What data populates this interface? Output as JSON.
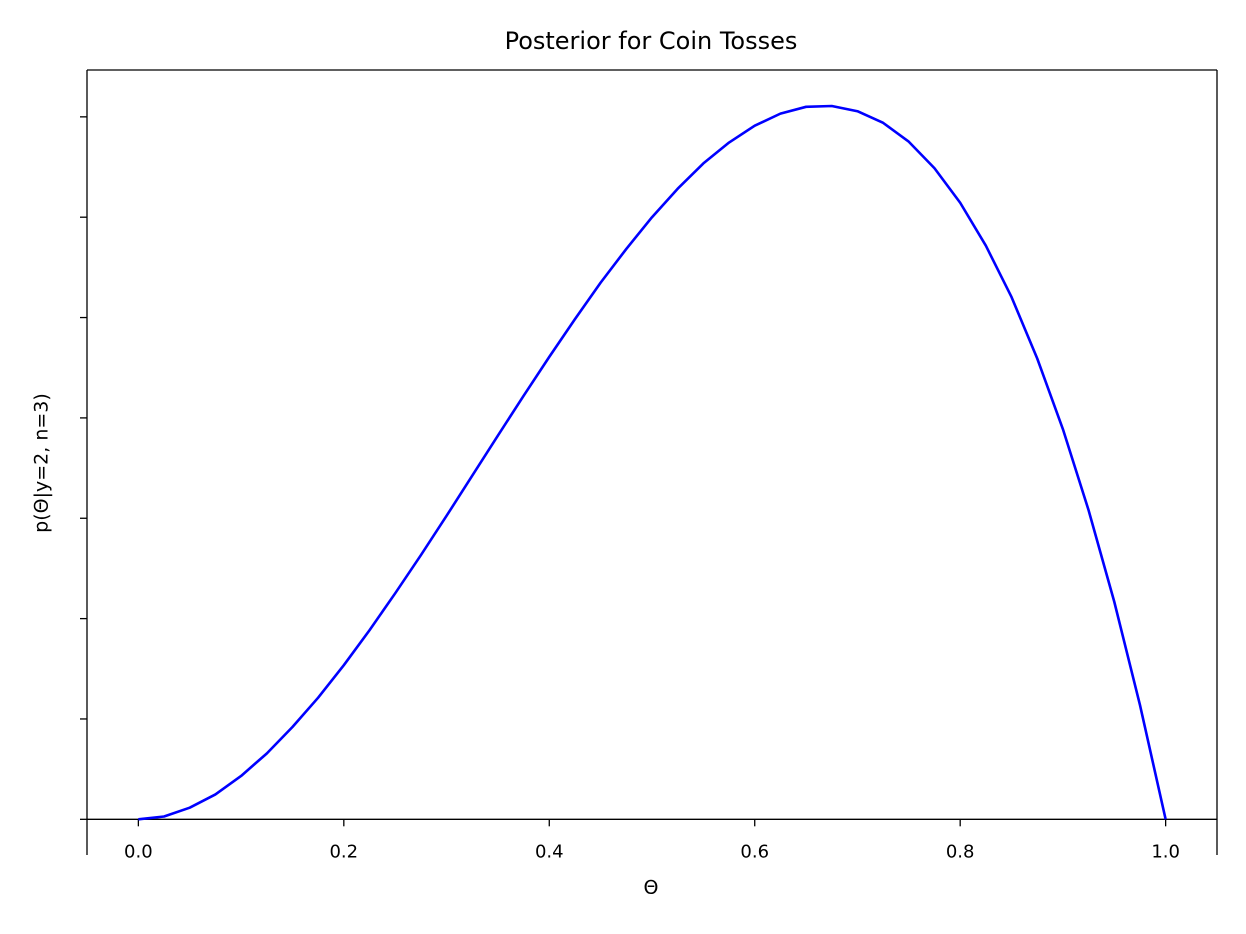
{
  "chart_data": {
    "type": "line",
    "title": "Posterior for Coin Tosses",
    "x_label": "Θ",
    "y_label": "p(Θ|y=2, n=3)",
    "x": [
      0,
      0.025,
      0.05,
      0.075,
      0.1,
      0.125,
      0.15,
      0.175,
      0.2,
      0.225,
      0.25,
      0.275,
      0.3,
      0.325,
      0.35,
      0.375,
      0.4,
      0.425,
      0.45,
      0.475,
      0.5,
      0.525,
      0.55,
      0.575,
      0.6,
      0.625,
      0.65,
      0.675,
      0.7,
      0.725,
      0.75,
      0.775,
      0.8,
      0.825,
      0.85,
      0.875,
      0.9,
      0.925,
      0.95,
      0.975,
      1
    ],
    "series": [
      {
        "color": "#0000ff",
        "values": [
          0,
          0.007,
          0.029,
          0.062,
          0.108,
          0.164,
          0.23,
          0.303,
          0.384,
          0.471,
          0.563,
          0.658,
          0.756,
          0.856,
          0.956,
          1.055,
          1.152,
          1.246,
          1.337,
          1.421,
          1.5,
          1.571,
          1.634,
          1.686,
          1.728,
          1.758,
          1.775,
          1.777,
          1.764,
          1.735,
          1.688,
          1.622,
          1.536,
          1.429,
          1.301,
          1.148,
          0.972,
          0.77,
          0.542,
          0.285,
          0
        ]
      }
    ],
    "xlim": [
      -0.05,
      1.05
    ],
    "ylim": [
      -0.0889,
      1.8667
    ],
    "xticks": [
      {
        "value": 0,
        "label": "0.0"
      },
      0.2,
      0.4,
      0.6,
      0.8,
      {
        "value": 1,
        "label": "1.0"
      }
    ],
    "yticks": [
      0,
      0.25,
      0.5,
      0.75,
      1,
      1.25,
      1.5,
      1.75
    ],
    "ytick_labels": false,
    "grid": false
  }
}
